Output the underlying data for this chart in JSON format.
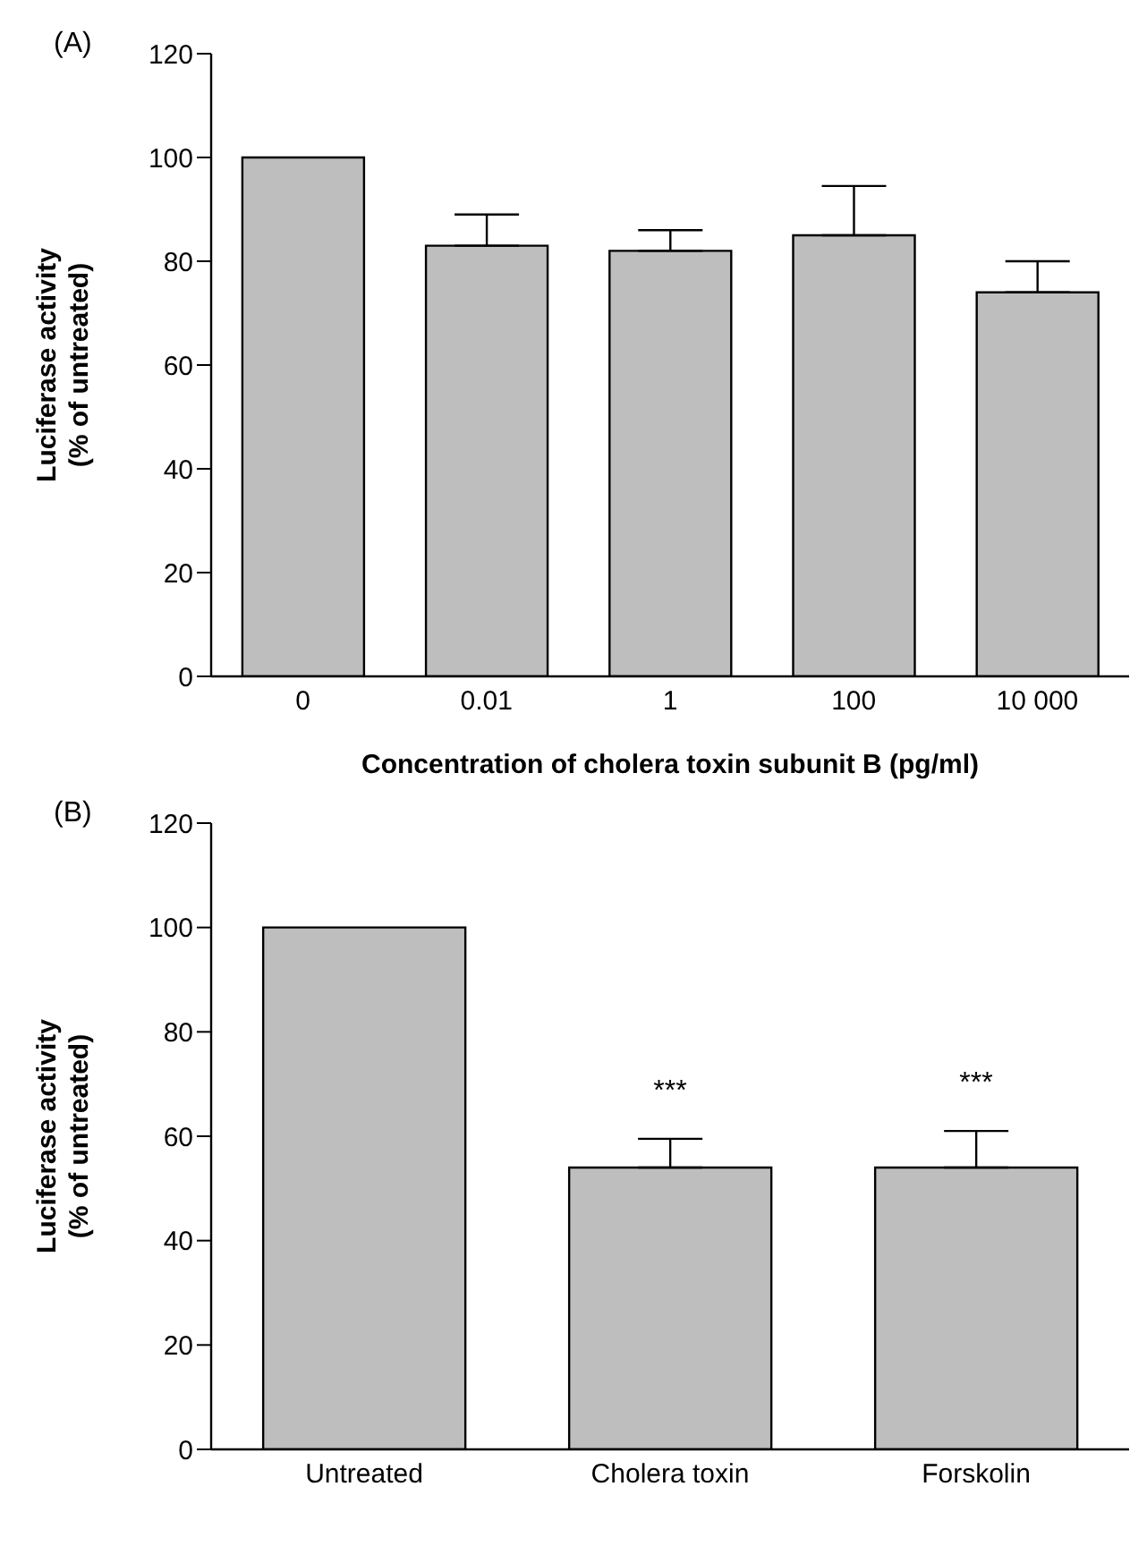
{
  "chart_data": [
    {
      "type": "bar",
      "title": "(A)",
      "xlabel": "Concentration of cholera toxin subunit B (pg/ml)",
      "ylabel": "Luciferase activity\n(% of untreated)",
      "categories": [
        "0",
        "0.01",
        "1",
        "100",
        "10 000"
      ],
      "values": [
        100,
        83,
        82,
        85,
        74
      ],
      "errors": [
        null,
        [
          83,
          89
        ],
        [
          82,
          86
        ],
        [
          85,
          94.5
        ],
        [
          74,
          80
        ]
      ],
      "color": "#bebebe",
      "ylim": [
        0,
        120
      ],
      "yticks": [
        0,
        20,
        40,
        60,
        80,
        100,
        120
      ],
      "grid": false,
      "legend": false
    },
    {
      "type": "bar",
      "title": "(B)",
      "ylabel": "Luciferase activity\n(% of untreated)",
      "categories": [
        "Untreated",
        "Cholera toxin",
        "Forskolin"
      ],
      "values": [
        100,
        54,
        54
      ],
      "errors": [
        null,
        [
          54,
          59.5
        ],
        [
          54,
          61
        ]
      ],
      "color": "#bebebe",
      "ylim": [
        0,
        120
      ],
      "yticks": [
        0,
        20,
        40,
        60,
        80,
        100,
        120
      ],
      "grid": false,
      "legend": false,
      "annotations": [
        "***",
        "***"
      ]
    }
  ]
}
